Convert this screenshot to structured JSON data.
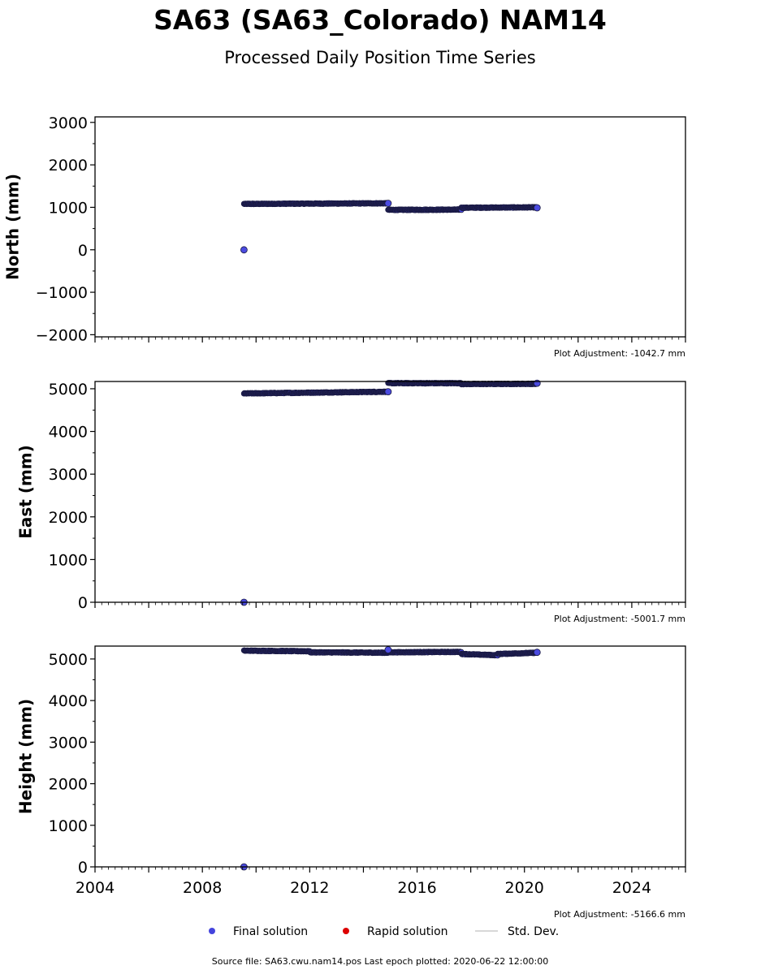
{
  "title": "SA63 (SA63_Colorado) NAM14",
  "subtitle": "Processed Daily Position Time Series",
  "source_text": "Source file: SA63.cwu.nam14.pos  Last epoch plotted: 2020-06-22 12:00:00",
  "legend": [
    {
      "label": "Final solution",
      "color": "#4444dd",
      "kind": "dot"
    },
    {
      "label": "Rapid solution",
      "color": "#dd0000",
      "kind": "dot"
    },
    {
      "label": "Std. Dev.",
      "color": "#cccccc",
      "kind": "line"
    }
  ],
  "colors": {
    "final": "#4b4be0",
    "final_edge": "#1a1a44",
    "axis": "#000000"
  },
  "chart_data": [
    {
      "type": "scatter",
      "ylabel": "North (mm)",
      "xlim": [
        2004.0,
        2026.0
      ],
      "ylim": [
        -2050,
        3130
      ],
      "yticks": [
        -2000,
        -1000,
        0,
        1000,
        2000,
        3000
      ],
      "adjustment": "Plot Adjustment: -1042.7 mm",
      "segments": [
        {
          "x0": 2009.55,
          "x1": 2014.92,
          "y0": 1080,
          "y1": 1095
        },
        {
          "x0": 2014.92,
          "x1": 2017.65,
          "y0": 940,
          "y1": 945
        },
        {
          "x0": 2017.65,
          "x1": 2020.47,
          "y0": 990,
          "y1": 1000
        }
      ],
      "points": [
        [
          2009.55,
          0
        ],
        [
          2014.92,
          1095
        ],
        [
          2020.47,
          990
        ]
      ]
    },
    {
      "type": "scatter",
      "ylabel": "East (mm)",
      "xlim": [
        2004.0,
        2026.0
      ],
      "ylim": [
        0,
        5170
      ],
      "yticks": [
        0,
        1000,
        2000,
        3000,
        4000,
        5000
      ],
      "adjustment": "Plot Adjustment: -5001.7 mm",
      "segments": [
        {
          "x0": 2009.55,
          "x1": 2014.92,
          "y0": 4890,
          "y1": 4930
        },
        {
          "x0": 2014.92,
          "x1": 2017.65,
          "y0": 5130,
          "y1": 5130
        },
        {
          "x0": 2017.65,
          "x1": 2020.47,
          "y0": 5110,
          "y1": 5115
        }
      ],
      "points": [
        [
          2009.55,
          0
        ],
        [
          2014.92,
          4930
        ],
        [
          2020.47,
          5130
        ]
      ]
    },
    {
      "type": "scatter",
      "ylabel": "Height (mm)",
      "xlim": [
        2004.0,
        2026.0
      ],
      "ylim": [
        0,
        5310
      ],
      "yticks": [
        0,
        1000,
        2000,
        3000,
        4000,
        5000
      ],
      "xticks": [
        2004,
        2008,
        2012,
        2016,
        2020,
        2024
      ],
      "adjustment": "Plot Adjustment: -5166.6 mm",
      "segments": [
        {
          "x0": 2009.55,
          "x1": 2012.0,
          "y0": 5200,
          "y1": 5185
        },
        {
          "x0": 2012.0,
          "x1": 2014.92,
          "y0": 5160,
          "y1": 5150
        },
        {
          "x0": 2014.92,
          "x1": 2017.65,
          "y0": 5160,
          "y1": 5170
        },
        {
          "x0": 2017.65,
          "x1": 2019.0,
          "y0": 5120,
          "y1": 5090
        },
        {
          "x0": 2019.0,
          "x1": 2020.47,
          "y0": 5120,
          "y1": 5150
        }
      ],
      "points": [
        [
          2009.55,
          0
        ],
        [
          2014.92,
          5220
        ],
        [
          2020.47,
          5160
        ]
      ]
    }
  ]
}
